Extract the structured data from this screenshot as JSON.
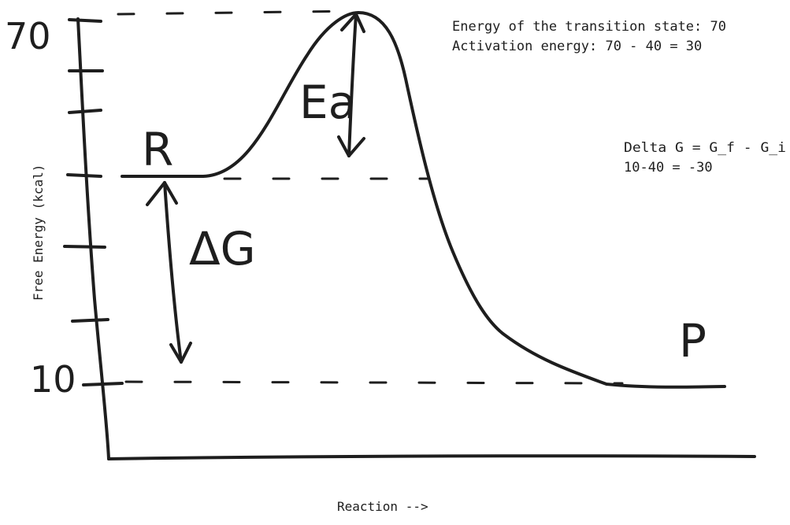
{
  "axes": {
    "y_label": "Free Energy (kcal)",
    "x_label": "Reaction -->",
    "y_top_value": "70",
    "y_bottom_value": "10"
  },
  "labels": {
    "reactant": "R",
    "product": "P",
    "activation_energy": "Ea",
    "delta_g": "ΔG"
  },
  "notes": {
    "transition_state": "Energy of the transition state: 70",
    "activation_energy": "Activation energy: 70 - 40 = 30",
    "delta_g_formula": "Delta G = G_f - G_i",
    "delta_g_calc": "10-40 = -30"
  }
}
